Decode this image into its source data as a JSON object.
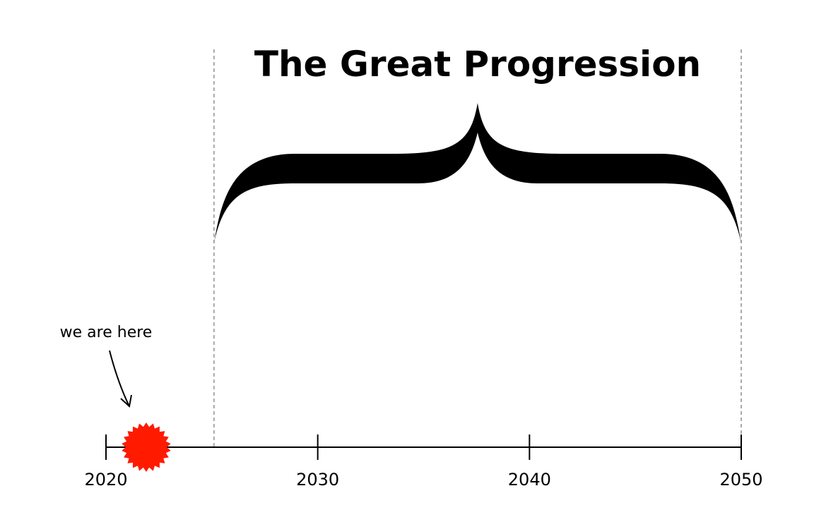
{
  "title": "The Great Progression",
  "annotation": "we are here",
  "timeline": {
    "start": 2020,
    "end": 2050,
    "ticks": [
      {
        "year": 2020,
        "label": "2020"
      },
      {
        "year": 2030,
        "label": "2030"
      },
      {
        "year": 2040,
        "label": "2040"
      },
      {
        "year": 2050,
        "label": "2050"
      }
    ],
    "current_year": 2021.9,
    "span": {
      "from": 2025.1,
      "to": 2050
    }
  },
  "colors": {
    "marker": "#ff1a00",
    "ink": "#000000",
    "guide": "#aaaaaa"
  },
  "icons": {
    "marker": "starburst-icon",
    "pointer": "arrow-icon",
    "span": "curly-brace-icon"
  }
}
